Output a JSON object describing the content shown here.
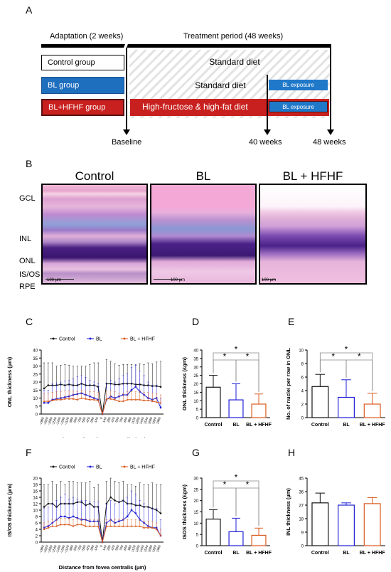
{
  "panels": {
    "A": "A",
    "B": "B",
    "C": "C",
    "D": "D",
    "E": "E",
    "F": "F",
    "G": "G",
    "H": "H"
  },
  "timeline": {
    "adaptation": "Adaptation (2 weeks)",
    "treatment": "Treatment period (48 weeks)",
    "groups": [
      "Control group",
      "BL group",
      "BL+HFHF group"
    ],
    "diets": [
      "Standard diet",
      "Standard diet",
      "High-fructose & high-fat diet"
    ],
    "exposure": "BL exposure",
    "markers": [
      "Baseline",
      "40 weeks",
      "48 weeks"
    ],
    "colors": {
      "control": "#ffffff",
      "bl": "#1f6fbf",
      "hfhf": "#c8201e",
      "exposure": "#1f78c8"
    }
  },
  "histology": {
    "titles": [
      "Control",
      "BL",
      "BL + HFHF"
    ],
    "layers": [
      "GCL",
      "INL",
      "ONL",
      "IS/OS",
      "RPE"
    ],
    "scale": "100 µm"
  },
  "legend": [
    "Control",
    "BL",
    "BL + HFHF"
  ],
  "series_colors": [
    "#111111",
    "#1f1fd6",
    "#d95b1f"
  ],
  "chart_data": [
    {
      "id": "C",
      "type": "line",
      "ylabel": "ONL thickness (µm)",
      "xlabel": "Distance from fovea centralis (µm)",
      "ylim": [
        0,
        40
      ],
      "yticks": [
        0,
        5,
        10,
        15,
        20,
        25,
        30,
        35,
        40
      ],
      "categories": [
        "-1960",
        "-1820",
        "-1680",
        "-1540",
        "-1400",
        "-1260",
        "-1120",
        "-980",
        "-840",
        "-700",
        "-560",
        "-420",
        "-280",
        "-140",
        "0",
        "140",
        "280",
        "420",
        "560",
        "700",
        "840",
        "980",
        "1120",
        "1260",
        "1400",
        "1540",
        "1680",
        "1820",
        "1960"
      ],
      "series": [
        {
          "name": "Control",
          "values": [
            16,
            18,
            18,
            18,
            18.5,
            18,
            18.5,
            18,
            18,
            19,
            18,
            18,
            18,
            17,
            0,
            19,
            19,
            18.5,
            18.5,
            19,
            19,
            19,
            18.5,
            18.5,
            18,
            18,
            17.5,
            17.5,
            17
          ],
          "err": [
            16,
            14,
            14,
            12,
            12,
            13,
            12,
            12,
            12,
            11,
            12,
            13,
            14,
            15,
            0,
            15,
            14,
            13,
            12,
            12,
            12,
            12,
            12,
            13,
            13,
            14,
            14,
            15,
            16
          ]
        },
        {
          "name": "BL",
          "values": [
            7,
            7,
            9,
            9.5,
            10,
            10.5,
            11,
            12,
            12.5,
            13,
            12,
            11,
            10,
            9,
            0,
            9,
            11,
            10,
            11,
            12,
            12,
            15,
            17,
            14,
            12,
            10,
            9,
            10,
            4
          ],
          "err": [
            8,
            8,
            10,
            10,
            10,
            10,
            10,
            10,
            11,
            11,
            11,
            10,
            10,
            10,
            0,
            10,
            10,
            10,
            11,
            12,
            13,
            14,
            14,
            13,
            12,
            10,
            9,
            8,
            6
          ]
        },
        {
          "name": "BL + HFHF",
          "values": [
            8,
            8,
            8.5,
            9,
            9,
            9.5,
            9.5,
            9.5,
            9,
            10,
            9.5,
            9,
            9,
            8.5,
            0,
            9.5,
            9.5,
            9,
            8,
            8,
            9,
            9,
            9,
            9,
            8.5,
            8.5,
            8,
            7.5,
            7
          ],
          "err": [
            5,
            5,
            5,
            5,
            5,
            5,
            5,
            5,
            5,
            5,
            5,
            5,
            5,
            5,
            0,
            5,
            5,
            5,
            5,
            5,
            5,
            5,
            5,
            5,
            5,
            5,
            5,
            5,
            5
          ]
        }
      ]
    },
    {
      "id": "D",
      "type": "bar",
      "ylabel": "ONL thickness (£gm)",
      "categories": [
        "Control",
        "BL",
        "BL + HFHF"
      ],
      "values": [
        18,
        10.5,
        8
      ],
      "err": [
        7,
        9.5,
        6
      ],
      "ylim": [
        0,
        40
      ],
      "yticks": [
        0,
        5,
        10,
        15,
        20,
        25,
        30,
        35,
        40
      ],
      "sig": [
        [
          "Control",
          "BL",
          "*"
        ],
        [
          "BL",
          "BL + HFHF",
          "*"
        ],
        [
          "Control",
          "BL + HFHF",
          "*"
        ]
      ]
    },
    {
      "id": "E",
      "type": "bar",
      "ylabel": "No. of nuclei per row in ONL",
      "categories": [
        "Control",
        "BL",
        "BL + HFHF"
      ],
      "values": [
        4.6,
        3,
        2
      ],
      "err": [
        1.8,
        2.6,
        1.6
      ],
      "ylim": [
        0,
        10
      ],
      "yticks": [
        0,
        2,
        4,
        6,
        8,
        10
      ],
      "sig": [
        [
          "Control",
          "BL",
          "*"
        ],
        [
          "BL",
          "BL + HFHF",
          "*"
        ],
        [
          "Control",
          "BL + HFHF",
          "*"
        ]
      ]
    },
    {
      "id": "F",
      "type": "line",
      "ylabel": "IS/OS thickness (µm)",
      "xlabel": "Distance from fovea centralis (µm)",
      "ylim": [
        0,
        20
      ],
      "yticks": [
        0,
        2,
        4,
        6,
        8,
        10,
        12,
        14,
        16,
        18,
        20
      ],
      "categories": [
        "-1960",
        "-1820",
        "-1680",
        "-1540",
        "-1400",
        "-1260",
        "-1120",
        "-980",
        "-840",
        "-700",
        "-560",
        "-420",
        "-280",
        "-140",
        "0",
        "140",
        "280",
        "420",
        "560",
        "700",
        "840",
        "980",
        "1120",
        "1260",
        "1400",
        "1540",
        "1680",
        "1820",
        "1960"
      ],
      "series": [
        {
          "name": "Control",
          "values": [
            11,
            12,
            12,
            11,
            12,
            12,
            12,
            12,
            12.5,
            12.5,
            11.5,
            12,
            11,
            11,
            0,
            12,
            14,
            13,
            12.5,
            13,
            12,
            12,
            11.5,
            11.5,
            11,
            11,
            10.5,
            10,
            9
          ],
          "err": [
            7,
            6,
            7,
            7,
            7,
            6,
            7,
            7,
            6,
            6,
            7,
            7,
            6,
            7,
            0,
            7,
            6,
            6,
            6,
            6,
            6,
            6,
            6,
            7,
            7,
            7,
            8,
            8,
            9
          ]
        },
        {
          "name": "BL",
          "values": [
            4.5,
            5,
            6,
            7,
            8,
            8,
            7.5,
            8,
            7.5,
            7,
            7,
            6.5,
            6.5,
            6.5,
            0,
            6,
            7,
            6,
            6.5,
            7,
            8,
            10,
            9,
            7,
            6,
            5,
            4.5,
            4.5,
            2
          ],
          "err": [
            6,
            6,
            6,
            6,
            6,
            7,
            6,
            6,
            6,
            6,
            6,
            6,
            6,
            6,
            0,
            6,
            6,
            6,
            6,
            6,
            6,
            6,
            6,
            6,
            6,
            6,
            6,
            6,
            5
          ]
        },
        {
          "name": "BL + HFHF",
          "values": [
            4,
            4.5,
            5,
            5,
            5.5,
            5.5,
            5.5,
            5,
            5.5,
            5.5,
            5,
            5,
            5,
            5,
            0,
            5,
            5,
            5,
            5,
            5,
            5,
            5,
            5,
            5,
            4.5,
            4.5,
            4.5,
            4,
            2
          ],
          "err": [
            2,
            2,
            2,
            2,
            2,
            2,
            2,
            2,
            2,
            2,
            2,
            2,
            2,
            2,
            0,
            2,
            2,
            2,
            2,
            2,
            2,
            2,
            2,
            2,
            2,
            2,
            2,
            2,
            2
          ]
        }
      ]
    },
    {
      "id": "G",
      "type": "bar",
      "ylabel": "ISOS thickness (£gm)",
      "categories": [
        "Control",
        "BL",
        "BL + HFHF"
      ],
      "values": [
        11.8,
        6.2,
        4.6
      ],
      "err": [
        4.2,
        6,
        3.2
      ],
      "ylim": [
        0,
        30
      ],
      "yticks": [
        0,
        5,
        10,
        15,
        20,
        25,
        30
      ],
      "sig": [
        [
          "Control",
          "BL",
          "*"
        ],
        [
          "BL",
          "BL + HFHF",
          "*"
        ],
        [
          "Control",
          "BL + HFHF",
          "*"
        ]
      ]
    },
    {
      "id": "H",
      "type": "bar",
      "ylabel": "INL thickness (µm)",
      "categories": [
        "Control",
        "BL",
        "BL + HFHF"
      ],
      "values": [
        28.5,
        27,
        28
      ],
      "err": [
        6.5,
        1.5,
        4
      ],
      "ylim": [
        0,
        45
      ],
      "yticks": [
        0,
        9,
        18,
        27,
        36,
        45
      ],
      "sig": []
    }
  ]
}
